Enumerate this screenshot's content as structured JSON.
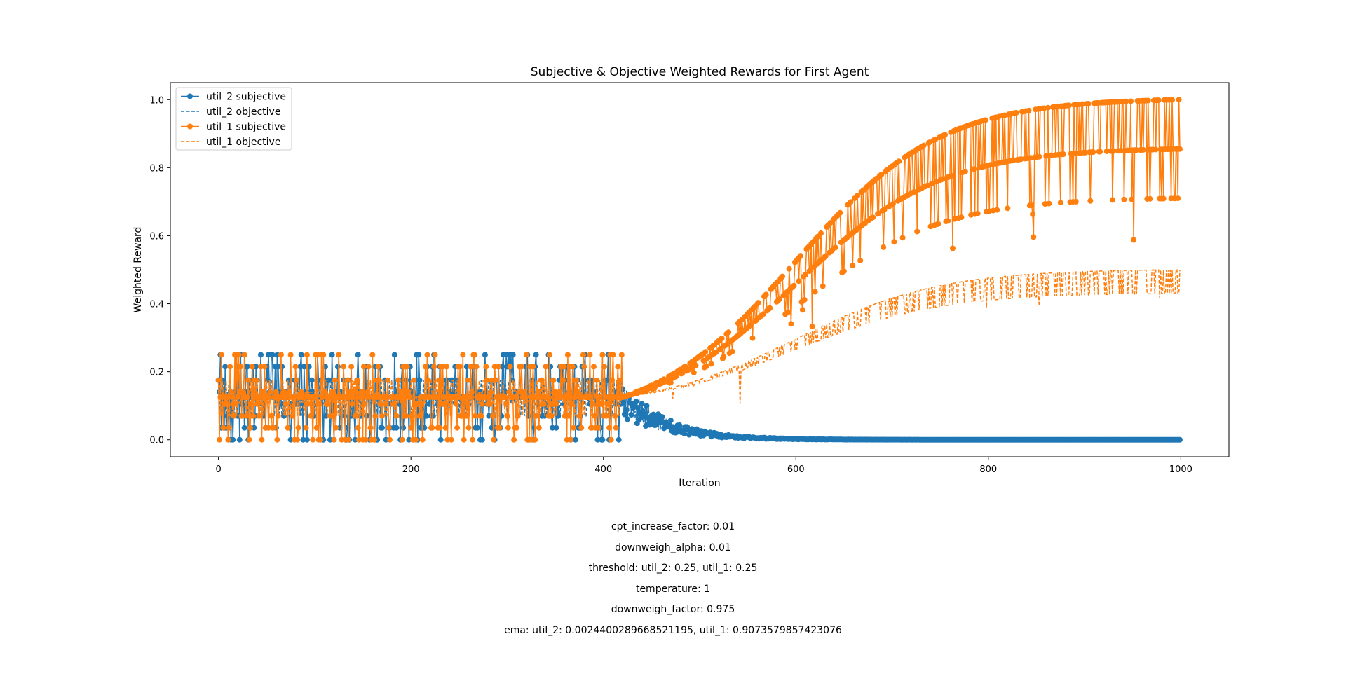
{
  "chart_data": {
    "type": "line",
    "title": "Subjective & Objective Weighted Rewards for First Agent",
    "xlabel": "Iteration",
    "ylabel": "Weighted Reward",
    "xlim": [
      -50,
      1050
    ],
    "ylim": [
      -0.05,
      1.05
    ],
    "xticks": [
      0,
      200,
      400,
      600,
      800,
      1000
    ],
    "yticks": [
      0.0,
      0.2,
      0.4,
      0.6,
      0.8,
      1.0
    ],
    "ytick_labels": [
      "0.0",
      "0.2",
      "0.4",
      "0.6",
      "0.8",
      "1.0"
    ],
    "grid": false,
    "legend_position": "upper-left",
    "n_iterations": 1000,
    "series": [
      {
        "name": "util_2 subjective",
        "style": "solid-with-markers",
        "color": "#1f77b4",
        "phases": [
          {
            "range": [
              0,
              420
            ],
            "pattern": "random",
            "levels": [
              0.0,
              0.035,
              0.07,
              0.105,
              0.14,
              0.175,
              0.215,
              0.25
            ],
            "center": 0.125
          },
          {
            "range": [
              420,
              1000
            ],
            "pattern": "decay-to",
            "end_value": 0.0
          }
        ]
      },
      {
        "name": "util_2 objective",
        "style": "dashed",
        "color": "#1f77b4",
        "phases": [
          {
            "range": [
              0,
              420
            ],
            "pattern": "random",
            "levels": [
              0.07,
              0.105,
              0.14,
              0.175
            ],
            "center": 0.125
          },
          {
            "range": [
              420,
              1000
            ],
            "pattern": "decay-to",
            "end_value": 0.0
          }
        ]
      },
      {
        "name": "util_1 subjective",
        "style": "solid-with-markers",
        "color": "#ff7f0e",
        "phases": [
          {
            "range": [
              0,
              420
            ],
            "pattern": "random",
            "levels": [
              0.0,
              0.035,
              0.07,
              0.105,
              0.14,
              0.175,
              0.215,
              0.25
            ],
            "center": 0.125
          },
          {
            "range": [
              420,
              1000
            ],
            "pattern": "rise-oscillate",
            "upper_end": 1.0,
            "middle_end": 0.855,
            "lower_end": 0.71
          }
        ]
      },
      {
        "name": "util_1 objective",
        "style": "dashed",
        "color": "#ff7f0e",
        "phases": [
          {
            "range": [
              0,
              420
            ],
            "pattern": "random",
            "levels": [
              0.07,
              0.105,
              0.14,
              0.175
            ],
            "center": 0.125
          },
          {
            "range": [
              420,
              1000
            ],
            "pattern": "rise-oscillate",
            "upper_end": 0.5,
            "lower_end": 0.43
          }
        ]
      }
    ]
  },
  "parameters": [
    "cpt_increase_factor: 0.01",
    "downweigh_alpha: 0.01",
    "threshold: util_2: 0.25, util_1: 0.25",
    "temperature: 1",
    "downweigh_factor: 0.975",
    "ema: util_2: 0.0024400289668521195, util_1: 0.9073579857423076"
  ]
}
